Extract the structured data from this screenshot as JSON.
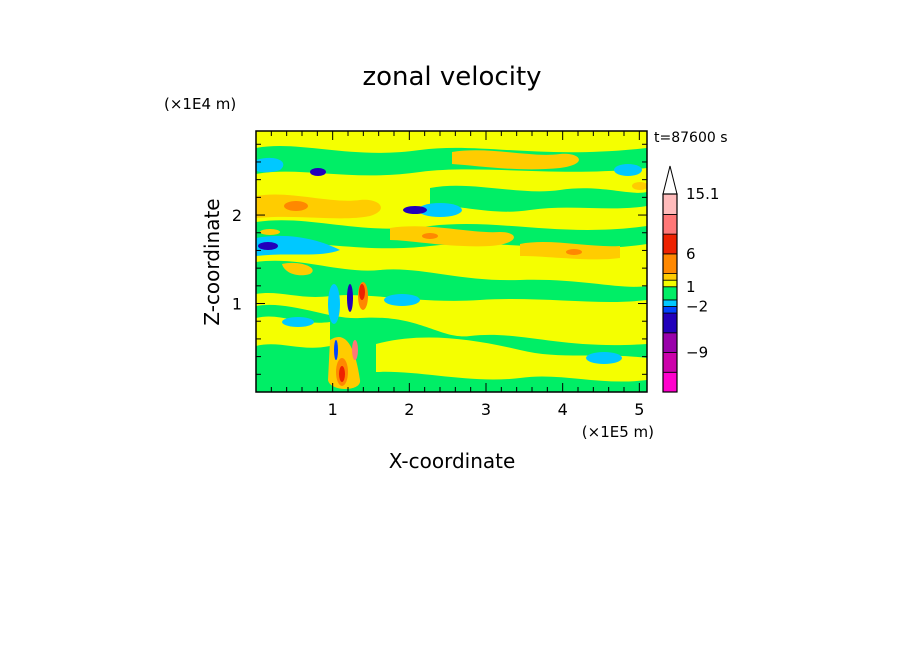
{
  "chart_data": {
    "type": "heatmap",
    "title": "zonal velocity",
    "xlabel": "X-coordinate",
    "ylabel": "Z-coordinate",
    "x_unit": "(×1E5 m)",
    "y_unit": "(×1E4 m)",
    "time_label": "t=87600 s",
    "xlim": [
      0,
      5.1
    ],
    "ylim": [
      0,
      2.95
    ],
    "x_ticks": [
      1,
      2,
      3,
      4,
      5
    ],
    "y_ticks": [
      1,
      2
    ],
    "colorbar": {
      "levels": [
        -15,
        -12,
        -9,
        -6,
        -3,
        -2,
        -1,
        1,
        2,
        3,
        6,
        9,
        12,
        15.1
      ],
      "colors": [
        "#ff00cc",
        "#cc00aa",
        "#9900aa",
        "#2200bb",
        "#0044ff",
        "#00c8ff",
        "#00ee66",
        "#f5ff00",
        "#ffcc00",
        "#ff8800",
        "#ee2200",
        "#ff7777",
        "#ffbbbb"
      ],
      "labels": [
        {
          "text": "15.1",
          "value": 15.1
        },
        {
          "text": "6",
          "value": 6
        },
        {
          "text": "1",
          "value": 1
        },
        {
          "text": "−2",
          "value": -2
        },
        {
          "text": "−9",
          "value": -9
        }
      ],
      "extend": "max"
    }
  }
}
